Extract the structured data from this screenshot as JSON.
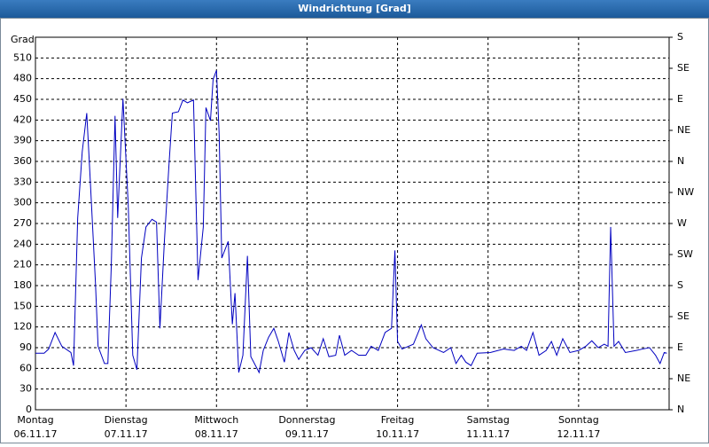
{
  "chart_data": {
    "type": "line",
    "title": "Windrichtung [Grad]",
    "ylabel": "Grad",
    "x": [
      0,
      2.3,
      3.5,
      5.2,
      7,
      9.4,
      10.1,
      11.2,
      12.4,
      13.6,
      14.5,
      15.9,
      16.6,
      18.3,
      19.2,
      20.1,
      21.1,
      21.8,
      23.2,
      24.6,
      25.8,
      26.9,
      28.1,
      29.3,
      30.9,
      32.1,
      33,
      34.2,
      35.4,
      36.3,
      37.9,
      39.1,
      40.3,
      41.9,
      43.1,
      44.5,
      45.2,
      46.4,
      47.1,
      48,
      48.7,
      49.4,
      51.1,
      52.2,
      52.9,
      53.9,
      55,
      56.2,
      57.1,
      59.3,
      60.4,
      61.8,
      63.2,
      64.4,
      66,
      67.2,
      68.6,
      69.8,
      71.4,
      73.1,
      74.9,
      76.3,
      77.8,
      79.6,
      80.6,
      82,
      83.8,
      85.7,
      87.6,
      89,
      90.9,
      92.7,
      94.4,
      95.3,
      96,
      97.2,
      100.2,
      102.3,
      103.5,
      105.4,
      108.2,
      110.1,
      111.5,
      112.9,
      114.1,
      115.5,
      117.1,
      120.6,
      124.1,
      126.9,
      128.8,
      130.2,
      131.9,
      133.5,
      135.4,
      136.8,
      138.2,
      139.8,
      141.7,
      144,
      145.9,
      147.5,
      149.2,
      150.8,
      151.8,
      152.5,
      153.4,
      154.6,
      156.4,
      159.3,
      160.9,
      162.8,
      164.4,
      165.6,
      166.7,
      167.4
    ],
    "series": [
      {
        "name": "Windrichtung",
        "color": "#0000c0",
        "values": [
          82,
          82,
          88,
          112,
          92,
          83,
          64,
          278,
          374,
          430,
          336,
          185,
          92,
          67,
          67,
          208,
          426,
          278,
          451,
          297,
          79,
          58,
          220,
          265,
          276,
          272,
          118,
          246,
          355,
          430,
          432,
          449,
          445,
          449,
          188,
          265,
          438,
          419,
          479,
          492,
          400,
          220,
          244,
          124,
          169,
          54,
          79,
          223,
          77,
          54,
          86,
          105,
          118,
          99,
          69,
          112,
          86,
          73,
          86,
          90,
          79,
          103,
          77,
          79,
          108,
          79,
          86,
          79,
          79,
          92,
          86,
          112,
          118,
          231,
          99,
          88,
          95,
          123,
          103,
          90,
          83,
          90,
          67,
          79,
          69,
          64,
          82,
          83,
          88,
          86,
          92,
          86,
          112,
          79,
          86,
          99,
          79,
          103,
          83,
          86,
          92,
          100,
          90,
          95,
          92,
          265,
          92,
          99,
          83,
          86,
          88,
          90,
          79,
          67,
          83,
          82
        ]
      }
    ],
    "xlim": [
      0,
      168
    ],
    "xticks": [
      {
        "value": 0,
        "label": "Montag"
      },
      {
        "value": 24,
        "label": "Dienstag"
      },
      {
        "value": 48,
        "label": "Mittwoch"
      },
      {
        "value": 72,
        "label": "Donnerstag"
      },
      {
        "value": 96,
        "label": "Freitag"
      },
      {
        "value": 120,
        "label": "Samstag"
      },
      {
        "value": 144,
        "label": "Sonntag"
      }
    ],
    "xtick_dates": [
      "06.11.17",
      "07.11.17",
      "08.11.17",
      "09.11.17",
      "10.11.17",
      "11.11.17",
      "12.11.17"
    ],
    "ylim": [
      0,
      540
    ],
    "yticks": [
      0,
      30,
      60,
      90,
      120,
      150,
      180,
      210,
      240,
      270,
      300,
      330,
      360,
      390,
      420,
      450,
      480,
      510
    ],
    "y2lim": [
      0,
      540
    ],
    "y2ticks": [
      {
        "value": 0,
        "label": "N"
      },
      {
        "value": 45,
        "label": "NE"
      },
      {
        "value": 90,
        "label": "E"
      },
      {
        "value": 135,
        "label": "SE"
      },
      {
        "value": 180,
        "label": "S"
      },
      {
        "value": 225,
        "label": "SW"
      },
      {
        "value": 270,
        "label": "W"
      },
      {
        "value": 315,
        "label": "NW"
      },
      {
        "value": 360,
        "label": "N"
      },
      {
        "value": 405,
        "label": "NE"
      },
      {
        "value": 450,
        "label": "E"
      },
      {
        "value": 495,
        "label": "SE"
      },
      {
        "value": 540,
        "label": "S"
      }
    ],
    "grid": true
  }
}
